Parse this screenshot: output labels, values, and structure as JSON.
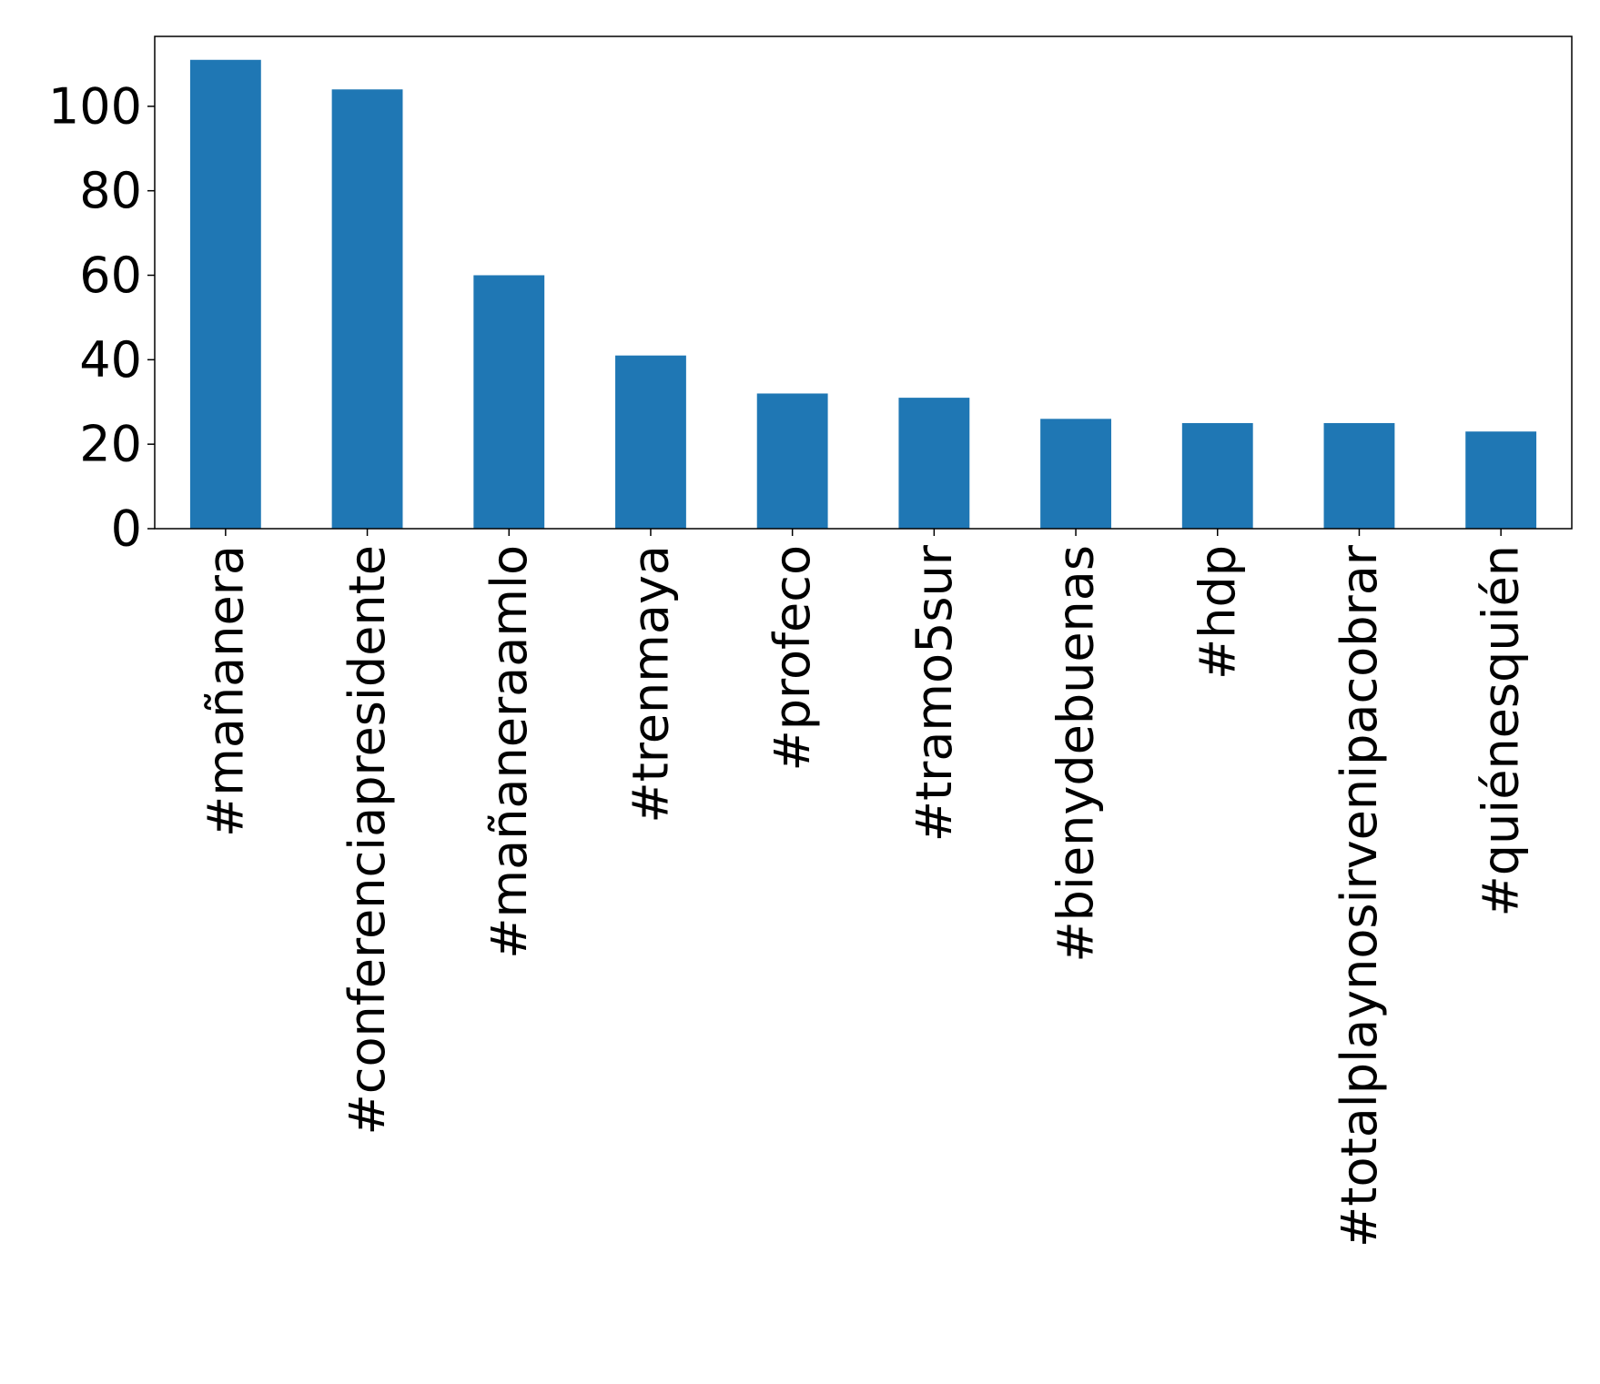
{
  "chart_data": {
    "type": "bar",
    "title": "",
    "xlabel": "",
    "ylabel": "",
    "categories": [
      "#mañanera",
      "#conferenciapresidente",
      "#mañaneraamlo",
      "#trenmaya",
      "#profeco",
      "#tramo5sur",
      "#bienydebuenas",
      "#hdp",
      "#totalplaynosirvenipacobrar",
      "#quiénesquién"
    ],
    "values": [
      111,
      104,
      60,
      41,
      32,
      31,
      26,
      25,
      25,
      23
    ],
    "ylim": [
      0,
      116.55
    ],
    "yticks": [
      0,
      20,
      40,
      60,
      80,
      100
    ],
    "ytick_labels": [
      "0",
      "20",
      "40",
      "60",
      "80",
      "100"
    ],
    "grid": false,
    "legend": "none",
    "bar_color": "#1f77b4"
  }
}
